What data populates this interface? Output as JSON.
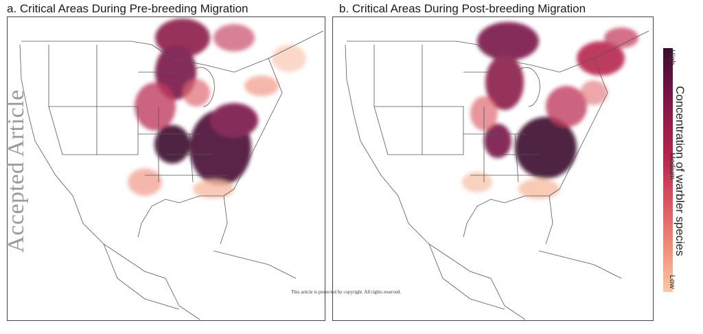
{
  "panels": [
    {
      "title": "a. Critical Areas During Pre-breeding Migration"
    },
    {
      "title": "b. Critical Areas During Post-breeding Migration"
    }
  ],
  "legend": {
    "title": "Concentration of warbler species",
    "high": "High",
    "medium": "Medium",
    "low": "Low",
    "colors": [
      "#3d0c2e",
      "#7a1448",
      "#b8264f",
      "#dc5a63",
      "#ef8f7c",
      "#fbc8a1"
    ]
  },
  "watermark": "Accepted Article",
  "copyright": "This article is protected by copyright. All rights reserved.",
  "colors": {
    "outline": "#555555",
    "high": "#5c0f3a",
    "medium": "#c2385a",
    "low": "#f6b79a"
  }
}
